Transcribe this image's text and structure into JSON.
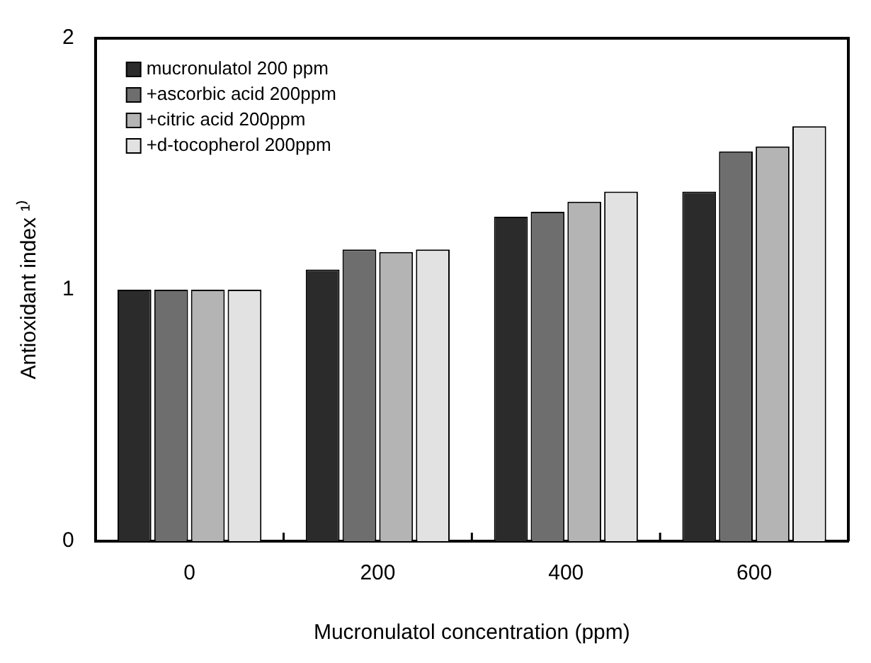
{
  "chart_data": {
    "type": "bar",
    "xlabel": "Mucronulatol concentration (ppm)",
    "ylabel": "Antioxidant index ¹⁾",
    "categories": [
      "0",
      "200",
      "400",
      "600"
    ],
    "series": [
      {
        "name": "mucronulatol 200 ppm",
        "color": "#2b2b2b",
        "values": [
          1.0,
          1.08,
          1.29,
          1.39
        ]
      },
      {
        "name": "+ascorbic acid 200ppm",
        "color": "#6e6e6e",
        "values": [
          1.0,
          1.16,
          1.31,
          1.55
        ]
      },
      {
        "name": "+citric acid 200ppm",
        "color": "#b4b4b4",
        "values": [
          1.0,
          1.15,
          1.35,
          1.57
        ]
      },
      {
        "name": "+d-tocopherol 200ppm",
        "color": "#e2e2e2",
        "values": [
          1.0,
          1.16,
          1.39,
          1.65
        ]
      }
    ],
    "ylim": [
      0,
      2
    ],
    "yticks": [
      0,
      1,
      2
    ],
    "grid": false,
    "legend": "top left"
  }
}
